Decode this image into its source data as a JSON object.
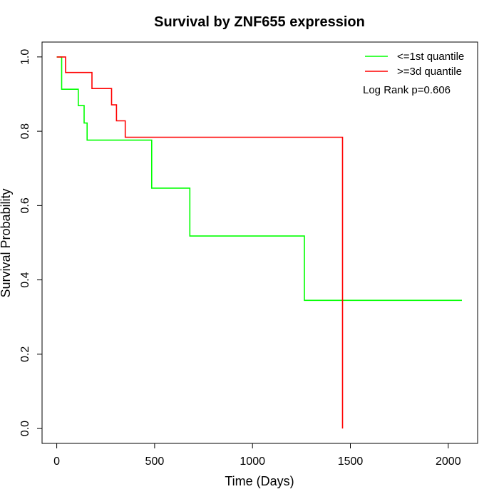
{
  "chart_data": {
    "type": "line",
    "title": "Survival by ZNF655 expression",
    "xlabel": "Time (Days)",
    "ylabel": "Survival Probability",
    "xlim": [
      -75,
      2150
    ],
    "ylim": [
      -0.04,
      1.04
    ],
    "xticks": [
      0,
      500,
      1000,
      1500,
      2000
    ],
    "yticks": [
      0.0,
      0.2,
      0.4,
      0.6,
      0.8,
      1.0
    ],
    "xtick_labels": [
      "0",
      "500",
      "1000",
      "1500",
      "2000"
    ],
    "ytick_labels": [
      "0.0",
      "0.2",
      "0.4",
      "0.6",
      "0.8",
      "1.0"
    ],
    "grid": false,
    "legend_position": "top-right",
    "annotation": "Log Rank p=0.606",
    "series": [
      {
        "name": "<=1st quantile",
        "color": "#00ff00",
        "step_points": [
          [
            0,
            1.0
          ],
          [
            25,
            1.0
          ],
          [
            25,
            0.913
          ],
          [
            110,
            0.913
          ],
          [
            110,
            0.869
          ],
          [
            140,
            0.869
          ],
          [
            140,
            0.822
          ],
          [
            155,
            0.822
          ],
          [
            155,
            0.776
          ],
          [
            485,
            0.776
          ],
          [
            485,
            0.647
          ],
          [
            680,
            0.647
          ],
          [
            680,
            0.518
          ],
          [
            1265,
            0.518
          ],
          [
            1265,
            0.345
          ],
          [
            2070,
            0.345
          ]
        ]
      },
      {
        "name": ">=3d quantile",
        "color": "#ff0000",
        "step_points": [
          [
            0,
            1.0
          ],
          [
            45,
            1.0
          ],
          [
            45,
            0.958
          ],
          [
            180,
            0.958
          ],
          [
            180,
            0.915
          ],
          [
            280,
            0.915
          ],
          [
            280,
            0.871
          ],
          [
            305,
            0.871
          ],
          [
            305,
            0.828
          ],
          [
            350,
            0.828
          ],
          [
            350,
            0.784
          ],
          [
            1460,
            0.784
          ],
          [
            1460,
            0.0
          ]
        ]
      }
    ]
  }
}
